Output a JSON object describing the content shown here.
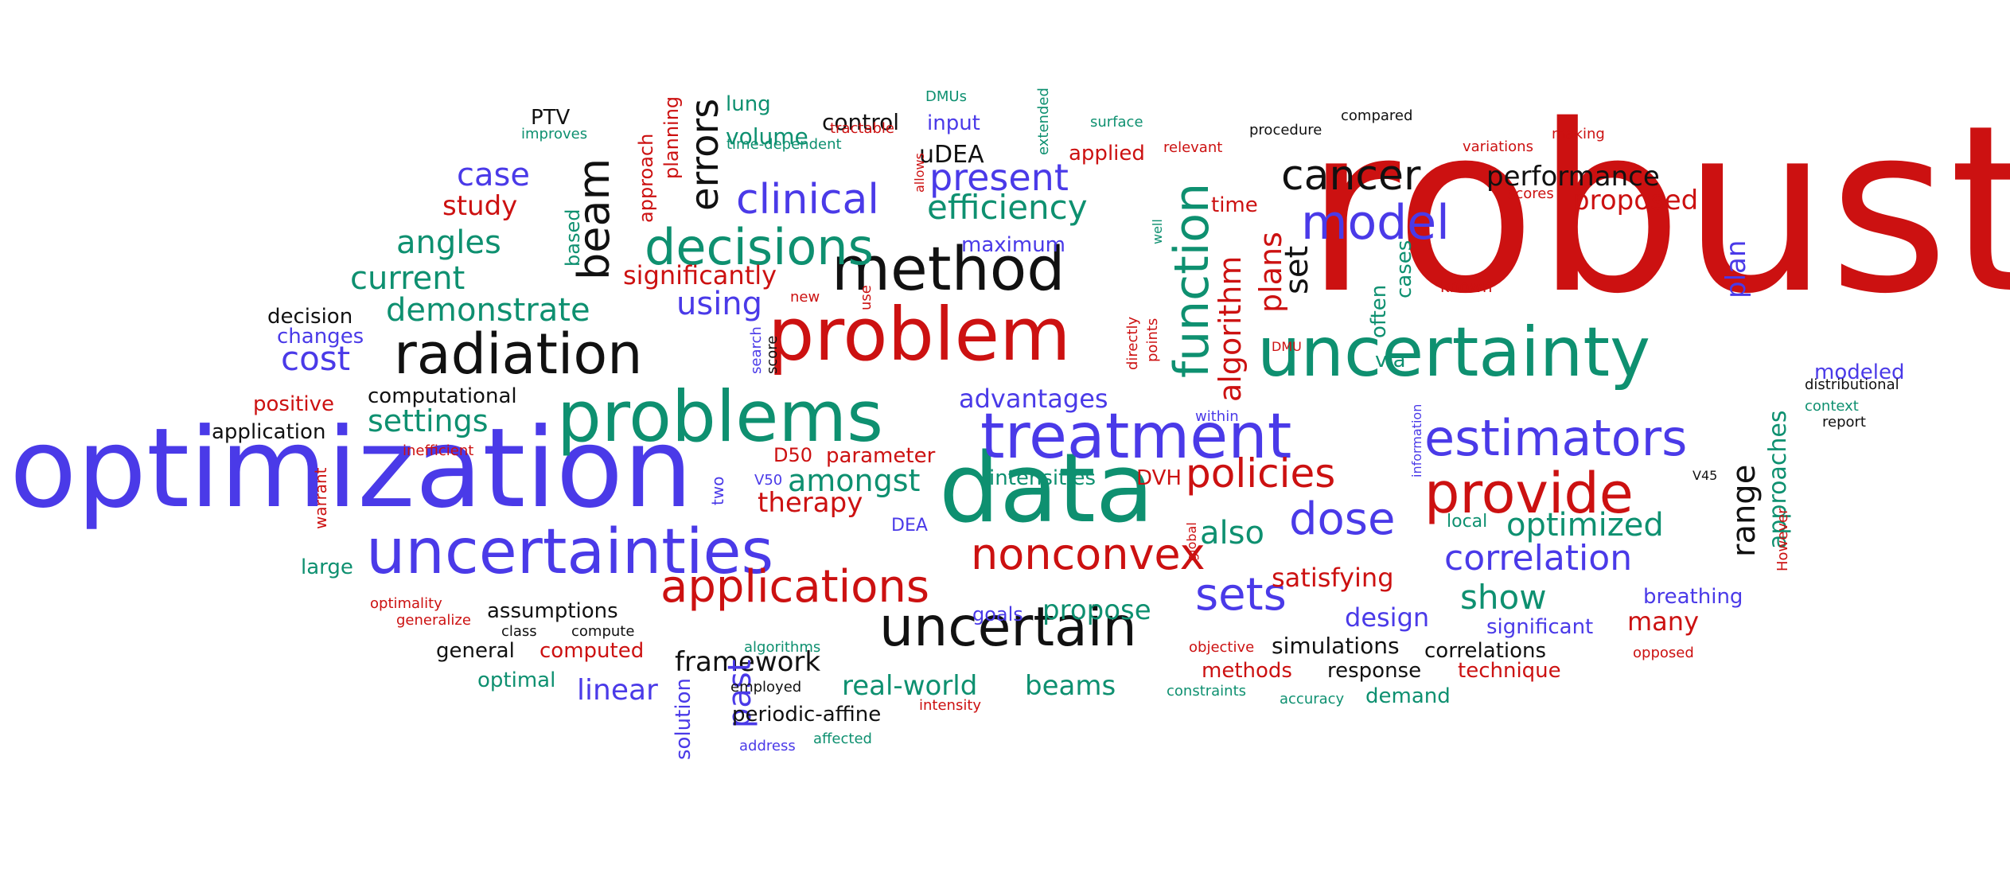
{
  "colors": {
    "red": "#cc1111",
    "blue": "#4a3ae8",
    "green": "#0e9070",
    "black": "#111111"
  },
  "words": [
    {
      "text": "robust",
      "color": "red"
    },
    {
      "text": "optimization",
      "color": "blue"
    },
    {
      "text": "data",
      "color": "green"
    },
    {
      "text": "uncertainty",
      "color": "green"
    },
    {
      "text": "problem",
      "color": "red"
    },
    {
      "text": "problems",
      "color": "green"
    },
    {
      "text": "radiation",
      "color": "black"
    },
    {
      "text": "method",
      "color": "black"
    },
    {
      "text": "treatment",
      "color": "blue"
    },
    {
      "text": "uncertainties",
      "color": "blue"
    },
    {
      "text": "estimators",
      "color": "blue"
    },
    {
      "text": "provide",
      "color": "red"
    },
    {
      "text": "uncertain",
      "color": "black"
    },
    {
      "text": "applications",
      "color": "red"
    },
    {
      "text": "nonconvex",
      "color": "red"
    },
    {
      "text": "decisions",
      "color": "green"
    },
    {
      "text": "function",
      "color": "green"
    },
    {
      "text": "model",
      "color": "blue"
    },
    {
      "text": "cancer",
      "color": "black"
    },
    {
      "text": "dose",
      "color": "blue"
    },
    {
      "text": "policies",
      "color": "red"
    },
    {
      "text": "sets",
      "color": "blue"
    },
    {
      "text": "beam",
      "color": "black"
    },
    {
      "text": "errors",
      "color": "black"
    },
    {
      "text": "clinical",
      "color": "blue"
    },
    {
      "text": "present",
      "color": "blue"
    },
    {
      "text": "efficiency",
      "color": "green"
    },
    {
      "text": "correlation",
      "color": "blue"
    },
    {
      "text": "optimized",
      "color": "green"
    },
    {
      "text": "range",
      "color": "black"
    },
    {
      "text": "approaches",
      "color": "green"
    },
    {
      "text": "performance",
      "color": "black"
    },
    {
      "text": "proposed",
      "color": "red"
    },
    {
      "text": "algorithm",
      "color": "red"
    },
    {
      "text": "plans",
      "color": "red"
    },
    {
      "text": "set",
      "color": "black"
    },
    {
      "text": "case",
      "color": "blue"
    },
    {
      "text": "study",
      "color": "red"
    },
    {
      "text": "angles",
      "color": "green"
    },
    {
      "text": "current",
      "color": "green"
    },
    {
      "text": "demonstrate",
      "color": "green"
    },
    {
      "text": "cost",
      "color": "blue"
    },
    {
      "text": "settings",
      "color": "green"
    },
    {
      "text": "amongst",
      "color": "green"
    },
    {
      "text": "therapy",
      "color": "red"
    },
    {
      "text": "also",
      "color": "green"
    },
    {
      "text": "satisfying",
      "color": "red"
    },
    {
      "text": "show",
      "color": "green"
    },
    {
      "text": "framework",
      "color": "black"
    },
    {
      "text": "real-world",
      "color": "green"
    },
    {
      "text": "beams",
      "color": "green"
    },
    {
      "text": "propose",
      "color": "green"
    },
    {
      "text": "design",
      "color": "blue"
    },
    {
      "text": "many",
      "color": "red"
    },
    {
      "text": "significantly",
      "color": "red"
    },
    {
      "text": "using",
      "color": "blue"
    },
    {
      "text": "advantages",
      "color": "blue"
    },
    {
      "text": "past",
      "color": "blue"
    },
    {
      "text": "linear",
      "color": "blue"
    },
    {
      "text": "uDEA",
      "color": "black"
    },
    {
      "text": "control",
      "color": "black"
    },
    {
      "text": "volume",
      "color": "green"
    },
    {
      "text": "input",
      "color": "blue"
    },
    {
      "text": "applied",
      "color": "red"
    },
    {
      "text": "maximum",
      "color": "blue"
    },
    {
      "text": "time",
      "color": "red"
    },
    {
      "text": "plan",
      "color": "blue"
    },
    {
      "text": "often",
      "color": "green"
    },
    {
      "text": "cases",
      "color": "green"
    },
    {
      "text": "via",
      "color": "green"
    },
    {
      "text": "modeled",
      "color": "blue"
    },
    {
      "text": "lung",
      "color": "green"
    },
    {
      "text": "approach",
      "color": "red"
    },
    {
      "text": "planning",
      "color": "red"
    },
    {
      "text": "based",
      "color": "green"
    },
    {
      "text": "decision",
      "color": "black"
    },
    {
      "text": "changes",
      "color": "blue"
    },
    {
      "text": "positive",
      "color": "red"
    },
    {
      "text": "computational",
      "color": "black"
    },
    {
      "text": "application",
      "color": "black"
    },
    {
      "text": "inefficient",
      "color": "red"
    },
    {
      "text": "warrant",
      "color": "red"
    },
    {
      "text": "large",
      "color": "green"
    },
    {
      "text": "optimality",
      "color": "red"
    },
    {
      "text": "generalize",
      "color": "red"
    },
    {
      "text": "assumptions",
      "color": "black"
    },
    {
      "text": "class",
      "color": "black"
    },
    {
      "text": "compute",
      "color": "black"
    },
    {
      "text": "general",
      "color": "black"
    },
    {
      "text": "computed",
      "color": "red"
    },
    {
      "text": "optimal",
      "color": "green"
    },
    {
      "text": "algorithms",
      "color": "green"
    },
    {
      "text": "employed",
      "color": "black"
    },
    {
      "text": "periodic-affine",
      "color": "black"
    },
    {
      "text": "address",
      "color": "blue"
    },
    {
      "text": "affected",
      "color": "green"
    },
    {
      "text": "intensity",
      "color": "red"
    },
    {
      "text": "solution",
      "color": "blue"
    },
    {
      "text": "two",
      "color": "blue"
    },
    {
      "text": "V50",
      "color": "blue"
    },
    {
      "text": "DEA",
      "color": "blue"
    },
    {
      "text": "D50",
      "color": "red"
    },
    {
      "text": "parameter",
      "color": "red"
    },
    {
      "text": "intensities",
      "color": "green"
    },
    {
      "text": "DVH",
      "color": "red"
    },
    {
      "text": "goals",
      "color": "blue"
    },
    {
      "text": "objective",
      "color": "red"
    },
    {
      "text": "constraints",
      "color": "green"
    },
    {
      "text": "methods",
      "color": "red"
    },
    {
      "text": "simulations",
      "color": "black"
    },
    {
      "text": "response",
      "color": "black"
    },
    {
      "text": "correlations",
      "color": "black"
    },
    {
      "text": "technique",
      "color": "red"
    },
    {
      "text": "accuracy",
      "color": "green"
    },
    {
      "text": "demand",
      "color": "green"
    },
    {
      "text": "significant",
      "color": "blue"
    },
    {
      "text": "opposed",
      "color": "red"
    },
    {
      "text": "breathing",
      "color": "blue"
    },
    {
      "text": "local",
      "color": "green"
    },
    {
      "text": "global",
      "color": "red"
    },
    {
      "text": "information",
      "color": "blue"
    },
    {
      "text": "within",
      "color": "blue"
    },
    {
      "text": "directly",
      "color": "red"
    },
    {
      "text": "points",
      "color": "red"
    },
    {
      "text": "DMU",
      "color": "red"
    },
    {
      "text": "known",
      "color": "red"
    },
    {
      "text": "PTV",
      "color": "black"
    },
    {
      "text": "improves",
      "color": "green"
    },
    {
      "text": "DMUs",
      "color": "green"
    },
    {
      "text": "extended",
      "color": "green"
    },
    {
      "text": "tractable",
      "color": "red"
    },
    {
      "text": "time-dependent",
      "color": "green"
    },
    {
      "text": "allows",
      "color": "red"
    },
    {
      "text": "surface",
      "color": "green"
    },
    {
      "text": "relevant",
      "color": "red"
    },
    {
      "text": "procedure",
      "color": "black"
    },
    {
      "text": "compared",
      "color": "black"
    },
    {
      "text": "variations",
      "color": "red"
    },
    {
      "text": "making",
      "color": "red"
    },
    {
      "text": "scores",
      "color": "red"
    },
    {
      "text": "well",
      "color": "green"
    },
    {
      "text": "new",
      "color": "red"
    },
    {
      "text": "use",
      "color": "red"
    },
    {
      "text": "search",
      "color": "blue"
    },
    {
      "text": "score",
      "color": "black"
    },
    {
      "text": "distributional",
      "color": "black"
    },
    {
      "text": "context",
      "color": "green"
    },
    {
      "text": "report",
      "color": "black"
    },
    {
      "text": "V45",
      "color": "black"
    },
    {
      "text": "However",
      "color": "red"
    }
  ]
}
